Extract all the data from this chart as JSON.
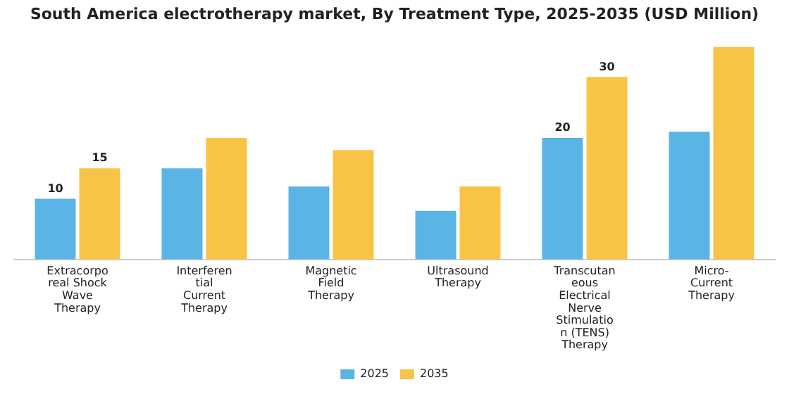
{
  "chart_data": {
    "type": "bar",
    "title": "South America electrotherapy market, By Treatment Type, 2025-2035 (USD Million)",
    "categories": [
      "Extracorporeal Shock Wave Therapy",
      "Interferential Current Therapy",
      "Magnetic Field Therapy",
      "Ultrasound Therapy",
      "Transcutaneous Electrical Nerve Stimulation (TENS) Therapy",
      "Micro-Current Therapy"
    ],
    "series": [
      {
        "name": "2025",
        "color": "#5ab4e5",
        "values": [
          10,
          15,
          12,
          8,
          20,
          21
        ],
        "value_labels": [
          "10",
          null,
          null,
          null,
          "20",
          null
        ]
      },
      {
        "name": "2035",
        "color": "#f9c446",
        "values": [
          15,
          20,
          18,
          12,
          30,
          35
        ],
        "value_labels": [
          "15",
          null,
          null,
          null,
          "30",
          null
        ]
      }
    ],
    "legend": "bottom",
    "grid": false,
    "tick_labels": "x"
  }
}
